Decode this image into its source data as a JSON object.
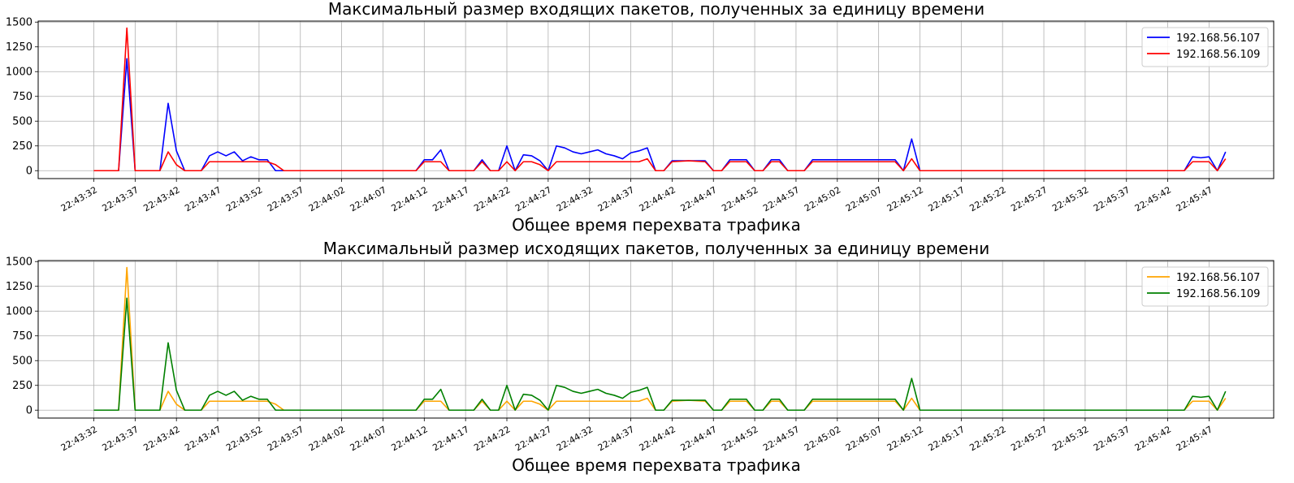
{
  "colors": {
    "in_107": "#0000ff",
    "in_109": "#ff0000",
    "out_107": "#ffa500",
    "out_109": "#008000",
    "grid": "#b0b0b0",
    "axis": "#000000"
  },
  "chart_data": [
    {
      "type": "line",
      "title": "Максимальный размер входящих пакетов, полученных за единицу времени",
      "xlabel": "Общее время перехвата трафика",
      "ylabel": "",
      "grid": true,
      "legend_position": "top-right",
      "ylim": [
        -80,
        1510
      ],
      "yticks": [
        0,
        250,
        500,
        750,
        1000,
        1250,
        1500
      ],
      "x_tick_labels": [
        "22:43:32",
        "22:43:37",
        "22:43:42",
        "22:43:47",
        "22:43:52",
        "22:43:57",
        "22:44:02",
        "22:44:07",
        "22:44:12",
        "22:44:17",
        "22:44:22",
        "22:44:27",
        "22:44:32",
        "22:44:37",
        "22:44:42",
        "22:44:47",
        "22:44:52",
        "22:44:57",
        "22:45:02",
        "22:45:07",
        "22:45:12",
        "22:45:17",
        "22:45:22",
        "22:45:27",
        "22:45:32",
        "22:45:37",
        "22:45:42",
        "22:45:47"
      ],
      "series": [
        {
          "name": "192.168.56.107",
          "color": "#0000ff",
          "points": [
            [
              0,
              0
            ],
            [
              3,
              0
            ],
            [
              4,
              1130
            ],
            [
              5,
              0
            ],
            [
              8,
              0
            ],
            [
              9,
              680
            ],
            [
              10,
              200
            ],
            [
              11,
              0
            ],
            [
              13,
              0
            ],
            [
              14,
              150
            ],
            [
              15,
              190
            ],
            [
              16,
              150
            ],
            [
              17,
              190
            ],
            [
              18,
              100
            ],
            [
              19,
              140
            ],
            [
              20,
              110
            ],
            [
              21,
              110
            ],
            [
              22,
              0
            ],
            [
              39,
              0
            ],
            [
              40,
              110
            ],
            [
              41,
              110
            ],
            [
              42,
              210
            ],
            [
              43,
              0
            ],
            [
              46,
              0
            ],
            [
              47,
              110
            ],
            [
              48,
              0
            ],
            [
              49,
              0
            ],
            [
              50,
              250
            ],
            [
              51,
              0
            ],
            [
              52,
              160
            ],
            [
              53,
              150
            ],
            [
              54,
              100
            ],
            [
              55,
              0
            ],
            [
              56,
              250
            ],
            [
              57,
              230
            ],
            [
              58,
              190
            ],
            [
              59,
              170
            ],
            [
              60,
              190
            ],
            [
              61,
              210
            ],
            [
              62,
              170
            ],
            [
              63,
              150
            ],
            [
              64,
              120
            ],
            [
              65,
              180
            ],
            [
              66,
              200
            ],
            [
              67,
              230
            ],
            [
              68,
              0
            ],
            [
              69,
              0
            ],
            [
              70,
              100
            ],
            [
              71,
              100
            ],
            [
              72,
              100
            ],
            [
              73,
              100
            ],
            [
              74,
              100
            ],
            [
              75,
              0
            ],
            [
              76,
              0
            ],
            [
              77,
              110
            ],
            [
              78,
              110
            ],
            [
              79,
              110
            ],
            [
              80,
              0
            ],
            [
              81,
              0
            ],
            [
              82,
              110
            ],
            [
              83,
              110
            ],
            [
              84,
              0
            ],
            [
              86,
              0
            ],
            [
              87,
              110
            ],
            [
              97,
              110
            ],
            [
              98,
              0
            ],
            [
              99,
              320
            ],
            [
              100,
              0
            ],
            [
              132,
              0
            ],
            [
              133,
              140
            ],
            [
              134,
              130
            ],
            [
              135,
              140
            ],
            [
              136,
              0
            ],
            [
              137,
              190
            ]
          ]
        },
        {
          "name": "192.168.56.109",
          "color": "#ff0000",
          "points": [
            [
              0,
              0
            ],
            [
              3,
              0
            ],
            [
              4,
              1440
            ],
            [
              5,
              0
            ],
            [
              8,
              0
            ],
            [
              9,
              190
            ],
            [
              10,
              60
            ],
            [
              11,
              0
            ],
            [
              13,
              0
            ],
            [
              14,
              90
            ],
            [
              21,
              90
            ],
            [
              22,
              60
            ],
            [
              23,
              0
            ],
            [
              39,
              0
            ],
            [
              40,
              90
            ],
            [
              42,
              90
            ],
            [
              43,
              0
            ],
            [
              46,
              0
            ],
            [
              47,
              90
            ],
            [
              48,
              0
            ],
            [
              49,
              0
            ],
            [
              50,
              90
            ],
            [
              51,
              0
            ],
            [
              52,
              90
            ],
            [
              53,
              90
            ],
            [
              54,
              60
            ],
            [
              55,
              0
            ],
            [
              56,
              90
            ],
            [
              66,
              90
            ],
            [
              67,
              120
            ],
            [
              68,
              0
            ],
            [
              69,
              0
            ],
            [
              70,
              90
            ],
            [
              72,
              100
            ],
            [
              74,
              90
            ],
            [
              75,
              0
            ],
            [
              76,
              0
            ],
            [
              77,
              90
            ],
            [
              79,
              90
            ],
            [
              80,
              0
            ],
            [
              81,
              0
            ],
            [
              82,
              90
            ],
            [
              83,
              90
            ],
            [
              84,
              0
            ],
            [
              86,
              0
            ],
            [
              87,
              90
            ],
            [
              97,
              90
            ],
            [
              98,
              0
            ],
            [
              99,
              120
            ],
            [
              100,
              0
            ],
            [
              132,
              0
            ],
            [
              133,
              90
            ],
            [
              135,
              90
            ],
            [
              136,
              0
            ],
            [
              137,
              120
            ]
          ]
        }
      ]
    },
    {
      "type": "line",
      "title": "Максимальный размер исходящих пакетов, полученных за единицу времени",
      "xlabel": "Общее время перехвата трафика",
      "ylabel": "",
      "grid": true,
      "legend_position": "top-right",
      "ylim": [
        -80,
        1510
      ],
      "yticks": [
        0,
        250,
        500,
        750,
        1000,
        1250,
        1500
      ],
      "x_tick_labels": [
        "22:43:32",
        "22:43:37",
        "22:43:42",
        "22:43:47",
        "22:43:52",
        "22:43:57",
        "22:44:02",
        "22:44:07",
        "22:44:12",
        "22:44:17",
        "22:44:22",
        "22:44:27",
        "22:44:32",
        "22:44:37",
        "22:44:42",
        "22:44:47",
        "22:44:52",
        "22:44:57",
        "22:45:02",
        "22:45:07",
        "22:45:12",
        "22:45:17",
        "22:45:22",
        "22:45:27",
        "22:45:32",
        "22:45:37",
        "22:45:42",
        "22:45:47"
      ],
      "series": [
        {
          "name": "192.168.56.107",
          "color": "#ffa500",
          "points": [
            [
              0,
              0
            ],
            [
              3,
              0
            ],
            [
              4,
              1440
            ],
            [
              5,
              0
            ],
            [
              8,
              0
            ],
            [
              9,
              190
            ],
            [
              10,
              60
            ],
            [
              11,
              0
            ],
            [
              13,
              0
            ],
            [
              14,
              90
            ],
            [
              21,
              90
            ],
            [
              22,
              60
            ],
            [
              23,
              0
            ],
            [
              39,
              0
            ],
            [
              40,
              90
            ],
            [
              42,
              90
            ],
            [
              43,
              0
            ],
            [
              46,
              0
            ],
            [
              47,
              90
            ],
            [
              48,
              0
            ],
            [
              49,
              0
            ],
            [
              50,
              90
            ],
            [
              51,
              0
            ],
            [
              52,
              90
            ],
            [
              53,
              90
            ],
            [
              54,
              60
            ],
            [
              55,
              0
            ],
            [
              56,
              90
            ],
            [
              66,
              90
            ],
            [
              67,
              120
            ],
            [
              68,
              0
            ],
            [
              69,
              0
            ],
            [
              70,
              90
            ],
            [
              72,
              100
            ],
            [
              74,
              90
            ],
            [
              75,
              0
            ],
            [
              76,
              0
            ],
            [
              77,
              90
            ],
            [
              79,
              90
            ],
            [
              80,
              0
            ],
            [
              81,
              0
            ],
            [
              82,
              90
            ],
            [
              83,
              90
            ],
            [
              84,
              0
            ],
            [
              86,
              0
            ],
            [
              87,
              90
            ],
            [
              97,
              90
            ],
            [
              98,
              0
            ],
            [
              99,
              120
            ],
            [
              100,
              0
            ],
            [
              132,
              0
            ],
            [
              133,
              90
            ],
            [
              135,
              90
            ],
            [
              136,
              0
            ],
            [
              137,
              120
            ]
          ]
        },
        {
          "name": "192.168.56.109",
          "color": "#008000",
          "points": [
            [
              0,
              0
            ],
            [
              3,
              0
            ],
            [
              4,
              1130
            ],
            [
              5,
              0
            ],
            [
              8,
              0
            ],
            [
              9,
              680
            ],
            [
              10,
              200
            ],
            [
              11,
              0
            ],
            [
              13,
              0
            ],
            [
              14,
              150
            ],
            [
              15,
              190
            ],
            [
              16,
              150
            ],
            [
              17,
              190
            ],
            [
              18,
              100
            ],
            [
              19,
              140
            ],
            [
              20,
              110
            ],
            [
              21,
              110
            ],
            [
              22,
              0
            ],
            [
              39,
              0
            ],
            [
              40,
              110
            ],
            [
              41,
              110
            ],
            [
              42,
              210
            ],
            [
              43,
              0
            ],
            [
              46,
              0
            ],
            [
              47,
              110
            ],
            [
              48,
              0
            ],
            [
              49,
              0
            ],
            [
              50,
              250
            ],
            [
              51,
              0
            ],
            [
              52,
              160
            ],
            [
              53,
              150
            ],
            [
              54,
              100
            ],
            [
              55,
              0
            ],
            [
              56,
              250
            ],
            [
              57,
              230
            ],
            [
              58,
              190
            ],
            [
              59,
              170
            ],
            [
              60,
              190
            ],
            [
              61,
              210
            ],
            [
              62,
              170
            ],
            [
              63,
              150
            ],
            [
              64,
              120
            ],
            [
              65,
              180
            ],
            [
              66,
              200
            ],
            [
              67,
              230
            ],
            [
              68,
              0
            ],
            [
              69,
              0
            ],
            [
              70,
              100
            ],
            [
              71,
              100
            ],
            [
              72,
              100
            ],
            [
              73,
              100
            ],
            [
              74,
              100
            ],
            [
              75,
              0
            ],
            [
              76,
              0
            ],
            [
              77,
              110
            ],
            [
              78,
              110
            ],
            [
              79,
              110
            ],
            [
              80,
              0
            ],
            [
              81,
              0
            ],
            [
              82,
              110
            ],
            [
              83,
              110
            ],
            [
              84,
              0
            ],
            [
              86,
              0
            ],
            [
              87,
              110
            ],
            [
              97,
              110
            ],
            [
              98,
              0
            ],
            [
              99,
              320
            ],
            [
              100,
              0
            ],
            [
              132,
              0
            ],
            [
              133,
              140
            ],
            [
              134,
              130
            ],
            [
              135,
              140
            ],
            [
              136,
              0
            ],
            [
              137,
              190
            ]
          ]
        }
      ]
    }
  ]
}
